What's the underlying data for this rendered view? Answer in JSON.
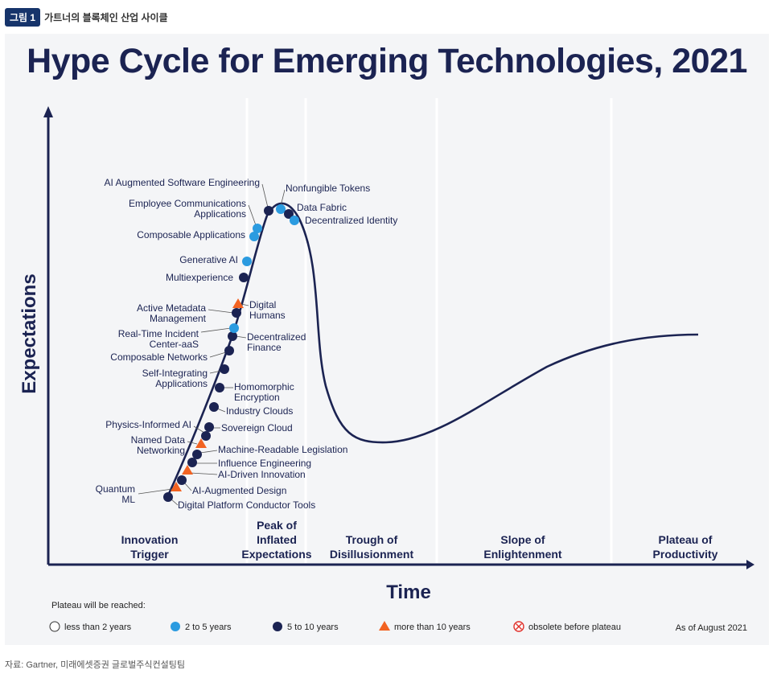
{
  "figure": {
    "badge": "그림 1",
    "caption": "가트너의 블록체인 산업 사이클"
  },
  "source": "자료: Gartner, 미래에셋증권 글로벌주식컨설팅팀",
  "colors": {
    "navy": "#1b2352",
    "light_blue": "#2b9be0",
    "orange": "#f26322",
    "panel": "#f4f5f7"
  },
  "chart_data": {
    "type": "hype-cycle",
    "title": "Hype Cycle for Emerging Technologies, 2021",
    "xlabel": "Time",
    "ylabel": "Expectations",
    "phases": [
      [
        "Innovation",
        "Trigger"
      ],
      [
        "Peak of",
        "Inflated",
        "Expectations"
      ],
      [
        "Trough of",
        "Disillusionment"
      ],
      [
        "Slope of",
        "Enlightenment"
      ],
      [
        "Plateau of",
        "Productivity"
      ]
    ],
    "legend": {
      "title": "Plateau will be reached:",
      "items": [
        {
          "label": "less than 2 years",
          "marker": "open-circle"
        },
        {
          "label": "2 to 5 years",
          "marker": "light-blue-circle"
        },
        {
          "label": "5 to 10 years",
          "marker": "navy-circle"
        },
        {
          "label": "more than 10 years",
          "marker": "orange-triangle"
        },
        {
          "label": "obsolete before plateau",
          "marker": "crossed-circle"
        }
      ],
      "as_of": "As of August 2021"
    },
    "technologies": [
      {
        "name": "Digital Platform Conductor Tools",
        "plateau": "5 to 10 years",
        "phase": "Innovation Trigger"
      },
      {
        "name": "Quantum ML",
        "plateau": "more than 10 years",
        "phase": "Innovation Trigger"
      },
      {
        "name": "AI-Augmented Design",
        "plateau": "5 to 10 years",
        "phase": "Innovation Trigger"
      },
      {
        "name": "AI-Driven Innovation",
        "plateau": "more than 10 years",
        "phase": "Innovation Trigger"
      },
      {
        "name": "Influence Engineering",
        "plateau": "5 to 10 years",
        "phase": "Innovation Trigger"
      },
      {
        "name": "Machine-Readable Legislation",
        "plateau": "5 to 10 years",
        "phase": "Innovation Trigger"
      },
      {
        "name": "Named Data Networking",
        "plateau": "more than 10 years",
        "phase": "Innovation Trigger"
      },
      {
        "name": "Physics-Informed AI",
        "plateau": "5 to 10 years",
        "phase": "Innovation Trigger"
      },
      {
        "name": "Sovereign Cloud",
        "plateau": "5 to 10 years",
        "phase": "Innovation Trigger"
      },
      {
        "name": "Industry Clouds",
        "plateau": "5 to 10 years",
        "phase": "Innovation Trigger"
      },
      {
        "name": "Homomorphic Encryption",
        "plateau": "5 to 10 years",
        "phase": "Innovation Trigger"
      },
      {
        "name": "Self-Integrating Applications",
        "plateau": "5 to 10 years",
        "phase": "Innovation Trigger"
      },
      {
        "name": "Composable Networks",
        "plateau": "5 to 10 years",
        "phase": "Innovation Trigger"
      },
      {
        "name": "Decentralized Finance",
        "plateau": "5 to 10 years",
        "phase": "Innovation Trigger"
      },
      {
        "name": "Real-Time Incident Center-aaS",
        "plateau": "2 to 5 years",
        "phase": "Innovation Trigger"
      },
      {
        "name": "Active Metadata Management",
        "plateau": "5 to 10 years",
        "phase": "Innovation Trigger"
      },
      {
        "name": "Digital Humans",
        "plateau": "more than 10 years",
        "phase": "Innovation Trigger"
      },
      {
        "name": "Multiexperience",
        "plateau": "5 to 10 years",
        "phase": "Innovation Trigger"
      },
      {
        "name": "Generative AI",
        "plateau": "2 to 5 years",
        "phase": "Innovation Trigger"
      },
      {
        "name": "Composable Applications",
        "plateau": "2 to 5 years",
        "phase": "Peak of Inflated Expectations"
      },
      {
        "name": "Employee Communications Applications",
        "plateau": "2 to 5 years",
        "phase": "Peak of Inflated Expectations"
      },
      {
        "name": "AI Augmented Software Engineering",
        "plateau": "5 to 10 years",
        "phase": "Peak of Inflated Expectations"
      },
      {
        "name": "Nonfungible Tokens",
        "plateau": "2 to 5 years",
        "phase": "Peak of Inflated Expectations"
      },
      {
        "name": "Data Fabric",
        "plateau": "5 to 10 years",
        "phase": "Peak of Inflated Expectations"
      },
      {
        "name": "Decentralized Identity",
        "plateau": "2 to 5 years",
        "phase": "Peak of Inflated Expectations"
      }
    ]
  }
}
